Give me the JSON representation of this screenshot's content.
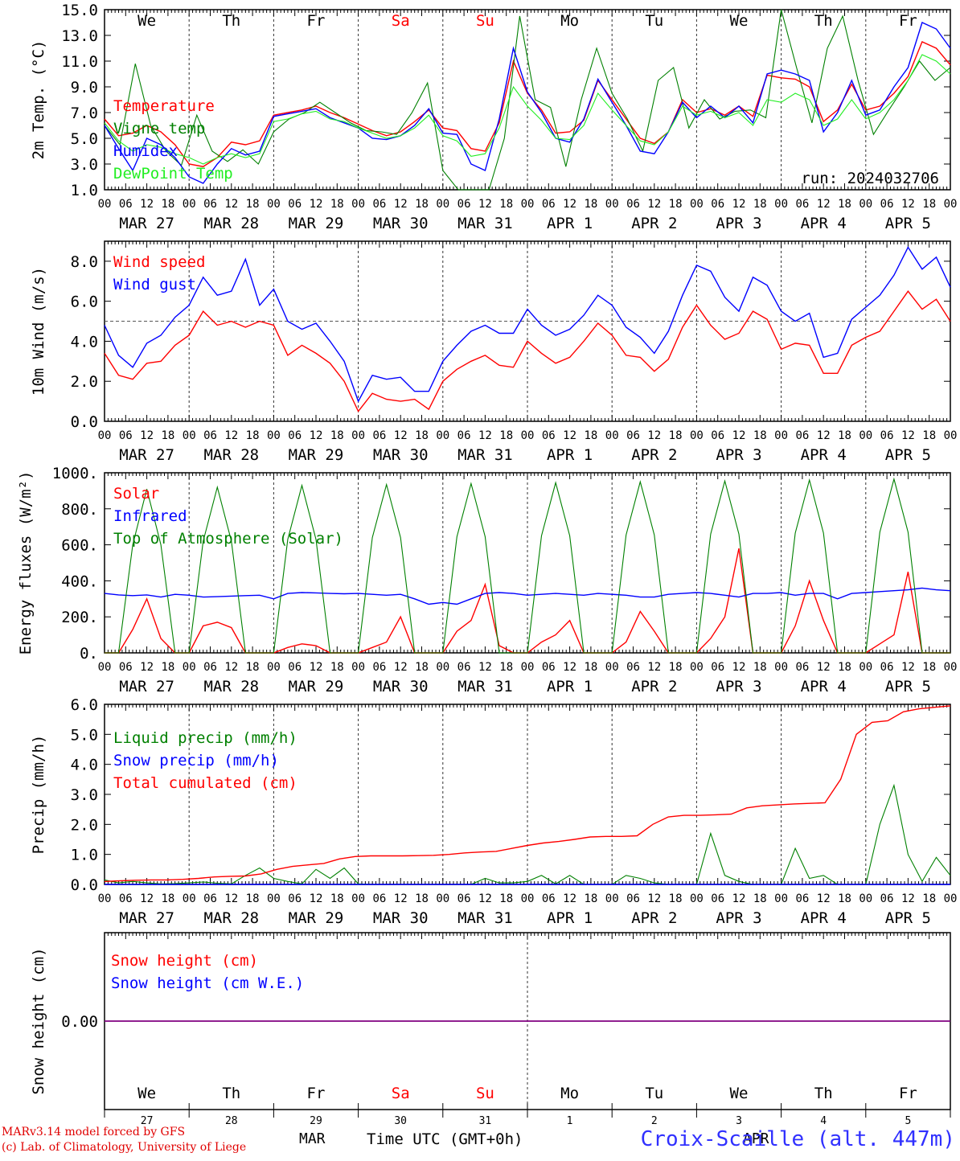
{
  "run_label": "run: 2024032706",
  "days": [
    {
      "abbr": "We",
      "date": "MAR 27",
      "num": "27",
      "weekend": false
    },
    {
      "abbr": "Th",
      "date": "MAR 28",
      "num": "28",
      "weekend": false
    },
    {
      "abbr": "Fr",
      "date": "MAR 29",
      "num": "29",
      "weekend": false
    },
    {
      "abbr": "Sa",
      "date": "MAR 30",
      "num": "30",
      "weekend": true
    },
    {
      "abbr": "Su",
      "date": "MAR 31",
      "num": "31",
      "weekend": true
    },
    {
      "abbr": "Mo",
      "date": "APR  1",
      "num": "1",
      "weekend": false
    },
    {
      "abbr": "Tu",
      "date": "APR  2",
      "num": "2",
      "weekend": false
    },
    {
      "abbr": "We",
      "date": "APR  3",
      "num": "3",
      "weekend": false
    },
    {
      "abbr": "Th",
      "date": "APR  4",
      "num": "4",
      "weekend": false
    },
    {
      "abbr": "Fr",
      "date": "APR  5",
      "num": "5",
      "weekend": false
    }
  ],
  "hour_ticks": [
    "00",
    "06",
    "12",
    "18"
  ],
  "last_tick": "00",
  "bottom": {
    "month_left": "MAR",
    "month_right": "APR",
    "xtitle": "Time UTC (GMT+0h)",
    "footer_line1": "MARv3.14 model forced by GFS",
    "footer_line2": "(c) Lab. of Climatology, University of Liege",
    "station": "Croix-Scaille (alt. 447m)"
  },
  "colors": {
    "red": "#ff0000",
    "blue": "#0000ff",
    "green": "#008000",
    "lightgreen": "#22ee22",
    "purple": "#800080",
    "weekend": "#ff0000"
  },
  "chart_data": [
    {
      "type": "line",
      "ylabel": "2m Temp. (°C)",
      "ylim": [
        1,
        15
      ],
      "yticks": [
        "1.0",
        "3.0",
        "5.0",
        "7.0",
        "9.0",
        "11.0",
        "13.0",
        "15.0"
      ],
      "x_hours_step": 6,
      "series": [
        {
          "name": "Temperature",
          "color": "red",
          "values": [
            6.5,
            5.2,
            5.4,
            6.0,
            5.5,
            4.5,
            3.0,
            2.8,
            3.5,
            4.7,
            4.5,
            4.8,
            6.8,
            7.0,
            7.2,
            7.5,
            7.0,
            6.6,
            6.1,
            5.6,
            5.2,
            5.5,
            6.3,
            7.2,
            5.8,
            5.6,
            4.2,
            4.0,
            6.2,
            11.0,
            8.5,
            7.2,
            5.4,
            5.5,
            6.4,
            9.5,
            8.0,
            6.5,
            5.0,
            4.6,
            5.5,
            8.0,
            7.0,
            7.3,
            6.8,
            7.5,
            6.7,
            9.9,
            9.7,
            9.6,
            9.0,
            6.3,
            7.2,
            9.2,
            7.2,
            7.5,
            8.5,
            9.8,
            12.5,
            12.0,
            10.7
          ]
        },
        {
          "name": "Vigne temp",
          "color": "green",
          "values": [
            6.0,
            4.5,
            10.8,
            6.0,
            4.0,
            2.9,
            6.8,
            4.0,
            3.2,
            4.1,
            3.0,
            5.5,
            6.5,
            7.0,
            7.8,
            7.0,
            6.2,
            5.6,
            5.5,
            5.3,
            7.0,
            9.3,
            2.5,
            0.5,
            1.0,
            0.0,
            5.0,
            14.5,
            8.0,
            7.4,
            2.8,
            8.0,
            12.0,
            8.5,
            6.5,
            4.0,
            9.5,
            10.5,
            5.8,
            8.0,
            6.5,
            7.1,
            7.2,
            6.6,
            15.0,
            10.5,
            6.2,
            12.0,
            14.5,
            9.5,
            5.3,
            7.2,
            9.0,
            11.0,
            9.5,
            10.5
          ]
        },
        {
          "name": "Humidex",
          "color": "blue",
          "values": [
            6.0,
            4.2,
            2.5,
            5.0,
            4.5,
            3.5,
            2.0,
            1.5,
            3.0,
            4.2,
            3.7,
            4.0,
            6.7,
            6.9,
            7.1,
            7.3,
            6.6,
            6.2,
            5.8,
            5.0,
            4.9,
            5.2,
            6.0,
            7.3,
            5.4,
            5.3,
            3.0,
            2.5,
            6.5,
            12.0,
            8.6,
            7.0,
            5.0,
            4.7,
            6.5,
            9.6,
            7.8,
            6.0,
            4.0,
            3.8,
            5.5,
            7.8,
            6.6,
            7.5,
            6.6,
            7.5,
            6.2,
            10.0,
            10.3,
            10.0,
            9.5,
            5.5,
            7.0,
            9.5,
            6.8,
            7.2,
            9.0,
            10.5,
            14.0,
            13.5,
            12.0
          ]
        },
        {
          "name": "DewPoint Temp",
          "color": "lightgreen",
          "values": [
            6.2,
            4.8,
            4.0,
            4.5,
            4.3,
            3.8,
            3.5,
            3.0,
            3.5,
            3.8,
            3.5,
            3.8,
            6.3,
            6.5,
            6.9,
            7.1,
            6.5,
            6.3,
            5.8,
            5.4,
            5.0,
            5.2,
            5.8,
            6.8,
            5.2,
            4.8,
            3.6,
            3.8,
            5.8,
            9.0,
            7.5,
            6.4,
            5.0,
            4.9,
            6.0,
            8.5,
            7.2,
            6.0,
            4.8,
            4.5,
            5.5,
            7.5,
            6.8,
            7.1,
            6.6,
            7.0,
            6.0,
            8.0,
            7.8,
            8.5,
            8.0,
            6.0,
            6.5,
            8.0,
            6.5,
            7.0,
            8.0,
            9.5,
            11.5,
            11.0,
            10.0
          ]
        }
      ]
    },
    {
      "type": "line",
      "ylabel": "10m Wind (m/s)",
      "ylim": [
        0,
        9
      ],
      "yticks": [
        "0.0",
        "2.0",
        "4.0",
        "6.0",
        "8.0"
      ],
      "threshold": 5,
      "series": [
        {
          "name": "Wind speed",
          "color": "red",
          "values": [
            3.4,
            2.3,
            2.1,
            2.9,
            3.0,
            3.8,
            4.3,
            5.5,
            4.8,
            5.0,
            4.7,
            5.0,
            4.8,
            3.3,
            3.8,
            3.4,
            2.9,
            2.0,
            0.5,
            1.4,
            1.1,
            1.0,
            1.1,
            0.6,
            2.0,
            2.6,
            3.0,
            3.3,
            2.8,
            2.7,
            4.0,
            3.4,
            2.9,
            3.2,
            4.0,
            4.9,
            4.3,
            3.3,
            3.2,
            2.5,
            3.1,
            4.7,
            5.8,
            4.8,
            4.1,
            4.4,
            5.5,
            5.1,
            3.6,
            3.9,
            3.8,
            2.4,
            2.4,
            3.8,
            4.2,
            4.5,
            5.5,
            6.5,
            5.6,
            6.1,
            5.0
          ]
        },
        {
          "name": "Wind gust",
          "color": "blue",
          "values": [
            4.8,
            3.3,
            2.7,
            3.9,
            4.3,
            5.2,
            5.8,
            7.2,
            6.3,
            6.5,
            8.1,
            5.8,
            6.6,
            5.0,
            4.6,
            4.9,
            4.0,
            3.0,
            1.0,
            2.3,
            2.1,
            2.2,
            1.5,
            1.5,
            3.0,
            3.8,
            4.5,
            4.8,
            4.4,
            4.4,
            5.6,
            4.8,
            4.3,
            4.6,
            5.3,
            6.3,
            5.8,
            4.7,
            4.2,
            3.4,
            4.5,
            6.3,
            7.8,
            7.5,
            6.2,
            5.5,
            7.2,
            6.8,
            5.5,
            5.0,
            5.4,
            3.2,
            3.4,
            5.1,
            5.7,
            6.3,
            7.3,
            8.7,
            7.6,
            8.2,
            6.7
          ]
        }
      ]
    },
    {
      "type": "line",
      "ylabel": "Energy fluxes (W/m²)",
      "ylim": [
        0,
        1000
      ],
      "yticks": [
        "0.",
        "200.",
        "400.",
        "600.",
        "800.",
        "1000."
      ],
      "series": [
        {
          "name": "Solar",
          "color": "red",
          "values": [
            0,
            0,
            130,
            300,
            80,
            0,
            0,
            150,
            170,
            140,
            0,
            0,
            0,
            30,
            50,
            40,
            0,
            0,
            0,
            30,
            60,
            200,
            0,
            0,
            0,
            120,
            180,
            380,
            40,
            0,
            0,
            60,
            100,
            180,
            0,
            0,
            0,
            60,
            230,
            120,
            0,
            0,
            0,
            80,
            200,
            580,
            0,
            0,
            0,
            150,
            400,
            180,
            0,
            0,
            0,
            50,
            100,
            450,
            0,
            0,
            0
          ]
        },
        {
          "name": "Infrared",
          "color": "blue",
          "values": [
            330,
            322,
            318,
            322,
            310,
            325,
            320,
            310,
            312,
            315,
            318,
            320,
            300,
            330,
            335,
            333,
            330,
            328,
            330,
            325,
            320,
            325,
            300,
            270,
            280,
            270,
            300,
            330,
            335,
            330,
            320,
            325,
            330,
            325,
            320,
            330,
            325,
            320,
            310,
            310,
            325,
            330,
            335,
            330,
            320,
            310,
            330,
            330,
            335,
            320,
            330,
            330,
            300,
            330,
            335,
            340,
            345,
            350,
            360,
            350,
            345
          ]
        },
        {
          "name": "Top of Atmosphere (Solar)",
          "color": "green",
          "values": [
            0,
            0,
            600,
            910,
            600,
            0,
            0,
            620,
            920,
            620,
            0,
            0,
            0,
            630,
            930,
            630,
            0,
            0,
            0,
            640,
            935,
            640,
            0,
            0,
            0,
            645,
            940,
            645,
            0,
            0,
            0,
            650,
            945,
            650,
            0,
            0,
            0,
            655,
            950,
            655,
            0,
            0,
            0,
            660,
            955,
            660,
            0,
            0,
            0,
            665,
            960,
            665,
            0,
            0,
            0,
            670,
            965,
            670,
            0,
            0,
            0
          ]
        }
      ]
    },
    {
      "type": "line",
      "ylabel": "Precip (mm/h)",
      "ylim": [
        0,
        6
      ],
      "yticks": [
        "0.0",
        "1.0",
        "2.0",
        "3.0",
        "4.0",
        "5.0",
        "6.0"
      ],
      "series": [
        {
          "name": "Liquid precip (mm/h)",
          "color": "green",
          "values": [
            0.15,
            0.05,
            0.1,
            0.05,
            0.02,
            0.03,
            0.05,
            0.08,
            0.04,
            0.02,
            0.3,
            0.55,
            0.2,
            0.1,
            0.02,
            0.5,
            0.2,
            0.55,
            0.02,
            0,
            0,
            0,
            0,
            0,
            0,
            0,
            0,
            0.2,
            0.05,
            0.05,
            0.1,
            0.3,
            0.02,
            0.3,
            0,
            0,
            0,
            0.3,
            0.2,
            0.05,
            0,
            0,
            0,
            1.7,
            0.3,
            0.1,
            0,
            0,
            0,
            1.2,
            0.2,
            0.3,
            0,
            0,
            0,
            2.0,
            3.3,
            1.0,
            0.1,
            0.9,
            0.3
          ]
        },
        {
          "name": "Snow precip (mm/h)",
          "color": "blue",
          "values": [
            0,
            0,
            0,
            0,
            0,
            0,
            0,
            0,
            0,
            0,
            0,
            0,
            0,
            0,
            0,
            0,
            0,
            0,
            0,
            0,
            0,
            0,
            0,
            0,
            0,
            0,
            0,
            0,
            0,
            0,
            0,
            0,
            0,
            0,
            0,
            0,
            0,
            0,
            0,
            0,
            0,
            0,
            0,
            0,
            0,
            0,
            0,
            0,
            0,
            0,
            0,
            0,
            0,
            0,
            0,
            0,
            0,
            0,
            0,
            0,
            0
          ]
        },
        {
          "name": "Total cumulated (cm)",
          "color": "red",
          "values": [
            0.1,
            0.12,
            0.14,
            0.15,
            0.15,
            0.17,
            0.2,
            0.25,
            0.27,
            0.28,
            0.35,
            0.5,
            0.6,
            0.65,
            0.7,
            0.85,
            0.93,
            0.95,
            0.95,
            0.95,
            0.96,
            0.97,
            1.0,
            1.05,
            1.08,
            1.1,
            1.2,
            1.3,
            1.38,
            1.43,
            1.5,
            1.58,
            1.6,
            1.6,
            1.62,
            2.0,
            2.25,
            2.3,
            2.3,
            2.32,
            2.34,
            2.55,
            2.62,
            2.65,
            2.68,
            2.7,
            2.72,
            3.5,
            5.0,
            5.4,
            5.45,
            5.75,
            5.85,
            5.9,
            5.95
          ]
        }
      ]
    },
    {
      "type": "line",
      "ylabel": "Snow height (cm)",
      "ylim": [
        -1,
        1
      ],
      "yticks": [
        "0.00"
      ],
      "series": [
        {
          "name": "Snow height (cm)",
          "color": "red",
          "values": [
            0,
            0
          ]
        },
        {
          "name": "Snow height (cm W.E.)",
          "color": "blue",
          "values": [
            0,
            0
          ]
        }
      ]
    }
  ]
}
